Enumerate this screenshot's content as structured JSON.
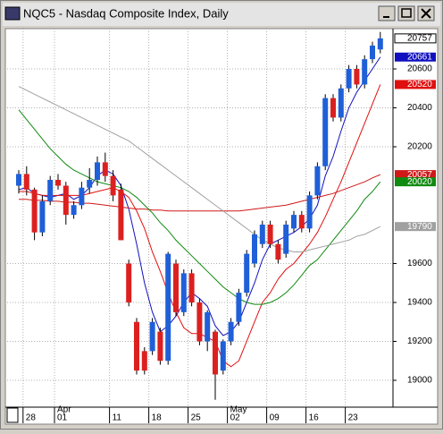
{
  "chart_data": {
    "type": "candlestick",
    "title": "NQC5 - Nasdaq Composite Index, Daily",
    "categories": [
      null,
      "28",
      null,
      null,
      null,
      "01",
      null,
      null,
      null,
      null,
      null,
      null,
      "11",
      null,
      null,
      null,
      null,
      "18",
      null,
      null,
      null,
      null,
      "25",
      null,
      null,
      null,
      null,
      "02",
      null,
      null,
      null,
      null,
      "09",
      null,
      null,
      null,
      null,
      "16",
      null,
      null,
      null,
      null,
      "23",
      null,
      null,
      null,
      null
    ],
    "month_categories": [
      null,
      null,
      null,
      null,
      null,
      "Apr",
      null,
      null,
      null,
      null,
      null,
      null,
      null,
      null,
      null,
      null,
      null,
      null,
      null,
      null,
      null,
      null,
      null,
      null,
      null,
      null,
      null,
      "May",
      null,
      null,
      null,
      null,
      null,
      null,
      null,
      null,
      null,
      null,
      null,
      null,
      null,
      null,
      null,
      null,
      null,
      null,
      null
    ],
    "open": [
      20000,
      20060,
      19980,
      19760,
      19920,
      20030,
      20000,
      19850,
      19900,
      19990,
      20030,
      20120,
      20050,
      19980,
      19600,
      19300,
      19150,
      19150,
      19250,
      19100,
      19600,
      19350,
      19550,
      19400,
      19200,
      19250,
      19050,
      19200,
      19300,
      19450,
      19600,
      19700,
      19800,
      19700,
      19650,
      19780,
      19850,
      19780,
      19950,
      20100,
      20450,
      20350,
      20500,
      20600,
      20520,
      20650,
      20700
    ],
    "high": [
      20080,
      20100,
      19990,
      19950,
      20050,
      20060,
      20020,
      19920,
      20020,
      20090,
      20150,
      20170,
      20080,
      20010,
      19620,
      19320,
      19170,
      19320,
      19270,
      19660,
      19620,
      19570,
      19570,
      19420,
      19360,
      19260,
      19210,
      19320,
      19470,
      19670,
      19770,
      19820,
      19820,
      19720,
      19820,
      19870,
      19870,
      19970,
      20120,
      20470,
      20470,
      20520,
      20620,
      20620,
      20670,
      20740,
      20790
    ],
    "low": [
      19960,
      19950,
      19720,
      19740,
      19900,
      19980,
      19800,
      19830,
      19880,
      19960,
      20000,
      20020,
      19920,
      19720,
      19380,
      19030,
      19030,
      19130,
      19080,
      19080,
      19330,
      19330,
      19380,
      19180,
      19150,
      18900,
      19030,
      19180,
      19280,
      19430,
      19580,
      19680,
      19680,
      19600,
      19630,
      19760,
      19760,
      19760,
      19930,
      20080,
      20330,
      20330,
      20480,
      20500,
      20500,
      20630,
      20680
    ],
    "close": [
      20060,
      19980,
      19760,
      19920,
      20030,
      20000,
      19850,
      19900,
      19990,
      20030,
      20120,
      20050,
      19950,
      19720,
      19400,
      19050,
      19050,
      19300,
      19100,
      19650,
      19350,
      19550,
      19400,
      19200,
      19350,
      19030,
      19200,
      19300,
      19450,
      19650,
      19750,
      19800,
      19700,
      19620,
      19800,
      19850,
      19780,
      19950,
      20100,
      20450,
      20350,
      20500,
      20600,
      20520,
      20650,
      20720,
      20757
    ],
    "up_color": "#1f5fd8",
    "down_color": "#dc2020",
    "series": [
      {
        "color": "#1010c0",
        "values": [
          19980,
          19990,
          19960,
          19950,
          19940,
          19950,
          19960,
          19930,
          19950,
          19990,
          20050,
          20080,
          20060,
          20000,
          19880,
          19700,
          19500,
          19350,
          19250,
          19280,
          19330,
          19400,
          19450,
          19420,
          19380,
          19280,
          19230,
          19250,
          19300,
          19400,
          19500,
          19620,
          19700,
          19720,
          19740,
          19760,
          19790,
          19830,
          19900,
          20050,
          20150,
          20280,
          20400,
          20480,
          20540,
          20600,
          20661
        ]
      },
      {
        "color": "#e01010",
        "values": [
          19970,
          19970,
          19960,
          19950,
          19950,
          19950,
          19950,
          19950,
          19950,
          19960,
          19970,
          19980,
          19990,
          19970,
          19940,
          19870,
          19780,
          19660,
          19560,
          19450,
          19350,
          19270,
          19240,
          19240,
          19220,
          19200,
          19100,
          19070,
          19100,
          19200,
          19300,
          19400,
          19450,
          19520,
          19570,
          19600,
          19650,
          19700,
          19760,
          19840,
          19930,
          20020,
          20120,
          20220,
          20320,
          20420,
          20520
        ]
      },
      {
        "color": "#d01818",
        "values": [
          19930,
          19930,
          19925,
          19925,
          19920,
          19920,
          19915,
          19915,
          19910,
          19910,
          19905,
          19900,
          19895,
          19890,
          19885,
          19880,
          19880,
          19875,
          19875,
          19870,
          19870,
          19870,
          19870,
          19870,
          19870,
          19870,
          19870,
          19870,
          19870,
          19875,
          19880,
          19885,
          19890,
          19895,
          19900,
          19910,
          19920,
          19930,
          19940,
          19950,
          19960,
          19975,
          19990,
          20005,
          20020,
          20040,
          20057
        ]
      },
      {
        "color": "#108a10",
        "values": [
          20390,
          20340,
          20290,
          20240,
          20190,
          20150,
          20110,
          20080,
          20060,
          20040,
          20020,
          20010,
          20000,
          19990,
          19970,
          19940,
          19900,
          19860,
          19810,
          19770,
          19720,
          19680,
          19640,
          19600,
          19560,
          19520,
          19480,
          19450,
          19420,
          19400,
          19390,
          19390,
          19400,
          19420,
          19450,
          19490,
          19540,
          19590,
          19620,
          19670,
          19720,
          19770,
          19820,
          19870,
          19930,
          19970,
          20020
        ]
      },
      {
        "color": "#a0a0a0",
        "values": [
          20510,
          20490,
          20470,
          20450,
          20430,
          20410,
          20390,
          20370,
          20350,
          20330,
          20310,
          20290,
          20270,
          20250,
          20230,
          20200,
          20170,
          20140,
          20110,
          20080,
          20050,
          20020,
          19990,
          19960,
          19930,
          19900,
          19870,
          19840,
          19810,
          19780,
          19750,
          19720,
          19700,
          19680,
          19670,
          19660,
          19660,
          19670,
          19680,
          19690,
          19700,
          19710,
          19720,
          19740,
          19750,
          19770,
          19790
        ]
      }
    ],
    "ylim": [
      18862,
      20807
    ],
    "yticks": [
      19000,
      19200,
      19400,
      19600,
      20200,
      20400,
      20600
    ],
    "grid": true
  }
}
